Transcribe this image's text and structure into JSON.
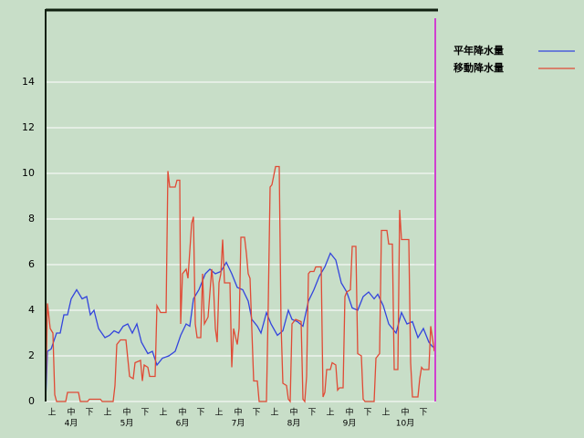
{
  "chart_data": {
    "type": "line",
    "ylim": [
      0,
      17.2
    ],
    "yticks": [
      0,
      2,
      4,
      6,
      8,
      10,
      12,
      14
    ],
    "grid": true,
    "xlim": [
      0,
      214
    ],
    "xticks": [
      {
        "value": 3.5,
        "label": "上"
      },
      {
        "value": 14,
        "label": "中"
      },
      {
        "value": 24,
        "label": "下"
      },
      {
        "value": 34,
        "label": "上"
      },
      {
        "value": 44.5,
        "label": "中"
      },
      {
        "value": 54.5,
        "label": "下"
      },
      {
        "value": 64.5,
        "label": "上"
      },
      {
        "value": 75,
        "label": "中"
      },
      {
        "value": 85,
        "label": "下"
      },
      {
        "value": 95,
        "label": "上"
      },
      {
        "value": 105.5,
        "label": "中"
      },
      {
        "value": 115.5,
        "label": "下"
      },
      {
        "value": 125.5,
        "label": "上"
      },
      {
        "value": 136,
        "label": "中"
      },
      {
        "value": 146,
        "label": "下"
      },
      {
        "value": 156,
        "label": "上"
      },
      {
        "value": 166.5,
        "label": "中"
      },
      {
        "value": 176.5,
        "label": "下"
      },
      {
        "value": 186.5,
        "label": "上"
      },
      {
        "value": 197,
        "label": "中"
      },
      {
        "value": 207,
        "label": "下"
      }
    ],
    "months": [
      {
        "value": 14,
        "label": "4月"
      },
      {
        "value": 44.5,
        "label": "5月"
      },
      {
        "value": 75,
        "label": "6月"
      },
      {
        "value": 105.5,
        "label": "7月"
      },
      {
        "value": 136,
        "label": "8月"
      },
      {
        "value": 166.5,
        "label": "9月"
      },
      {
        "value": 197,
        "label": "10月"
      }
    ],
    "series": [
      {
        "name": "平年降水量",
        "color": "#3344dd",
        "x": [
          0,
          1,
          3,
          6,
          8,
          10,
          12,
          14,
          17,
          20,
          22.5,
          24.5,
          26.5,
          29,
          32.5,
          35,
          37.5,
          40,
          42.5,
          45,
          47.5,
          50,
          52.5,
          56,
          58.5,
          61,
          64,
          67.5,
          71,
          74,
          77,
          79,
          81,
          84,
          87.5,
          90,
          93,
          96,
          99,
          102,
          105,
          108,
          111,
          113,
          116,
          118,
          121,
          123.5,
          127,
          130,
          133,
          135,
          138,
          141,
          144,
          147,
          150,
          153,
          156,
          159,
          162,
          165,
          168,
          171,
          174,
          177,
          180,
          182,
          185,
          188,
          192,
          195,
          198,
          201,
          204,
          207,
          210,
          212,
          213
        ],
        "values": [
          0,
          2.2,
          2.3,
          3,
          3,
          3.8,
          3.8,
          4.5,
          4.9,
          4.5,
          4.6,
          3.8,
          4,
          3.2,
          2.8,
          2.9,
          3.1,
          3.0,
          3.3,
          3.4,
          3.0,
          3.4,
          2.6,
          2.1,
          2.2,
          1.6,
          1.9,
          2.0,
          2.2,
          2.9,
          3.4,
          3.3,
          4.5,
          4.9,
          5.6,
          5.8,
          5.6,
          5.7,
          6.1,
          5.6,
          5.0,
          4.9,
          4.4,
          3.6,
          3.3,
          3.0,
          3.9,
          3.4,
          2.9,
          3.1,
          4.0,
          3.6,
          3.5,
          3.3,
          4.4,
          4.9,
          5.5,
          5.9,
          6.5,
          6.2,
          5.2,
          4.8,
          4.1,
          4.0,
          4.6,
          4.8,
          4.5,
          4.7,
          4.2,
          3.4,
          3.0,
          3.9,
          3.4,
          3.5,
          2.8,
          3.2,
          2.6,
          2.4,
          2.4
        ]
      },
      {
        "name": "移動降水量",
        "color": "#e04a35",
        "x": [
          0,
          1,
          2.5,
          4,
          5,
          6,
          11,
          12,
          18,
          19,
          23,
          24,
          30,
          31,
          37,
          38,
          39,
          41,
          44,
          46,
          48,
          49,
          52,
          53,
          54,
          56,
          57,
          60,
          61,
          63,
          66,
          67,
          68,
          71,
          72,
          73.5,
          74,
          75,
          77,
          78,
          80,
          81,
          82,
          83,
          85,
          86,
          87,
          89,
          91,
          92,
          93,
          94,
          95,
          96,
          97,
          98,
          101,
          102,
          103,
          105,
          106,
          107,
          109,
          110,
          111,
          112,
          114,
          116,
          117,
          121,
          122,
          123,
          124,
          126,
          128,
          129,
          130,
          132,
          133,
          134,
          135,
          137,
          140,
          141,
          142,
          143,
          144,
          145,
          147,
          148,
          151,
          152,
          153,
          154,
          156,
          157,
          159,
          160,
          161,
          163,
          164,
          165,
          167,
          168,
          170,
          171,
          173,
          174,
          175,
          180,
          181,
          183,
          184,
          187,
          188,
          190,
          191,
          193,
          194,
          195,
          199,
          200,
          201,
          204,
          205,
          206,
          207,
          210,
          211,
          213
        ],
        "values": [
          0,
          4.3,
          3.2,
          3.0,
          0.3,
          0,
          0,
          0.4,
          0.4,
          0,
          0,
          0.1,
          0.1,
          0,
          0,
          0.7,
          2.5,
          2.7,
          2.7,
          1.1,
          1.0,
          1.7,
          1.8,
          0.9,
          1.6,
          1.5,
          1.1,
          1.1,
          4.2,
          3.9,
          3.9,
          10.1,
          9.4,
          9.4,
          9.7,
          9.7,
          3.4,
          5.6,
          5.8,
          5.4,
          7.8,
          8.1,
          3.4,
          2.8,
          2.8,
          5.6,
          3.4,
          3.7,
          5.8,
          5.0,
          3.2,
          2.6,
          5.2,
          5.6,
          7.1,
          5.2,
          5.2,
          1.5,
          3.2,
          2.5,
          3.2,
          7.2,
          7.2,
          6.5,
          5.6,
          5.4,
          0.9,
          0.9,
          0,
          0,
          4.3,
          9.4,
          9.5,
          10.3,
          10.3,
          3.4,
          0.8,
          0.7,
          0.1,
          0,
          3.4,
          3.6,
          3.5,
          0.1,
          0,
          1.1,
          5.6,
          5.7,
          5.7,
          5.9,
          5.9,
          0.2,
          0.4,
          1.4,
          1.4,
          1.7,
          1.6,
          0.5,
          0.6,
          0.6,
          4.6,
          4.8,
          4.9,
          6.8,
          6.8,
          2.1,
          2.0,
          0.1,
          0,
          0,
          1.9,
          2.1,
          7.5,
          7.5,
          6.9,
          6.9,
          1.4,
          1.4,
          8.4,
          7.1,
          7.1,
          1.7,
          0.2,
          0.2,
          1.0,
          1.5,
          1.4,
          1.4,
          3.3,
          2.2
        ]
      }
    ]
  }
}
